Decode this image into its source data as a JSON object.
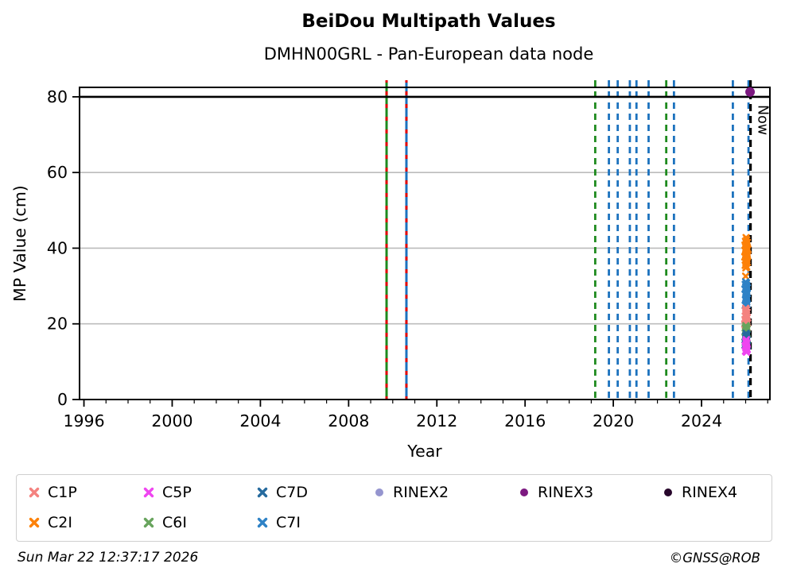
{
  "header": {
    "title": "BeiDou Multipath Values",
    "subtitle": "DMHN00GRL - Pan-European data node"
  },
  "footer": {
    "timestamp": "Sun Mar 22 12:37:17 2026",
    "copyright": "©GNSS@ROB"
  },
  "chart_data": {
    "type": "scatter",
    "title": "BeiDou Multipath Values",
    "subtitle": "DMHN00GRL - Pan-European data node",
    "xlabel": "Year",
    "ylabel": "MP Value (cm)",
    "xlim": [
      1995.8,
      2027.1
    ],
    "ylim": [
      0,
      82.5
    ],
    "x_major_ticks": [
      1996,
      2000,
      2004,
      2008,
      2012,
      2016,
      2020,
      2024
    ],
    "x_minor_step_years": 1,
    "y_major_ticks": [
      0,
      20,
      40,
      60,
      80
    ],
    "grid": "horizontal-only",
    "grid_color": "#bcbcbc",
    "hline": {
      "y": 80,
      "color": "#000000"
    },
    "now_marker": {
      "x": 2026.22,
      "label": "Now",
      "color": "#000000",
      "style": "dashed"
    },
    "event_lines": [
      {
        "x": 2009.72,
        "style": "solid+dash-overlay",
        "base_color": "#1e8a1e",
        "dash_color": "#e00000"
      },
      {
        "x": 2010.62,
        "style": "solid+dash-overlay",
        "base_color": "#1c72be",
        "dash_color": "#e00000"
      },
      {
        "x": 2019.18,
        "style": "dashed",
        "color": "#1e8a1e"
      },
      {
        "x": 2019.8,
        "style": "dashed",
        "color": "#1c72be"
      },
      {
        "x": 2020.2,
        "style": "dashed",
        "color": "#1c72be"
      },
      {
        "x": 2020.75,
        "style": "dashed",
        "color": "#1c72be"
      },
      {
        "x": 2021.05,
        "style": "dashed",
        "color": "#1c72be"
      },
      {
        "x": 2021.6,
        "style": "dashed",
        "color": "#1c72be"
      },
      {
        "x": 2022.4,
        "style": "dashed",
        "color": "#1e8a1e"
      },
      {
        "x": 2022.75,
        "style": "dashed",
        "color": "#1c72be"
      },
      {
        "x": 2025.42,
        "style": "dashed",
        "color": "#1c72be"
      },
      {
        "x": 2026.13,
        "style": "dashed",
        "color": "#1c72be"
      }
    ],
    "series": [
      {
        "name": "C2I",
        "marker": "x",
        "color": "#fd8108",
        "points": [
          [
            2026.02,
            42.8
          ],
          [
            2026.05,
            42.2
          ],
          [
            2025.99,
            41.8
          ],
          [
            2026.08,
            41.5
          ],
          [
            2026.03,
            41.1
          ],
          [
            2025.97,
            40.8
          ],
          [
            2026.06,
            40.4
          ],
          [
            2026.01,
            40.0
          ],
          [
            2026.1,
            39.7
          ],
          [
            2025.98,
            39.3
          ],
          [
            2026.04,
            39.0
          ],
          [
            2026.07,
            38.6
          ],
          [
            2026.0,
            38.3
          ],
          [
            2026.09,
            38.0
          ],
          [
            2025.96,
            37.7
          ],
          [
            2026.03,
            37.4
          ],
          [
            2026.06,
            37.0
          ],
          [
            2026.0,
            36.7
          ],
          [
            2026.08,
            36.3
          ],
          [
            2026.02,
            35.9
          ],
          [
            2025.98,
            35.5
          ],
          [
            2026.05,
            35.1
          ],
          [
            2026.01,
            34.8
          ],
          [
            2026.04,
            36.1
          ],
          [
            2026.07,
            37.8
          ],
          [
            2025.99,
            40.6
          ],
          [
            2026.0,
            32.6
          ],
          [
            2026.03,
            30.3
          ]
        ]
      },
      {
        "name": "C7I",
        "marker": "x",
        "color": "#2e82c6",
        "points": [
          [
            2026.0,
            31.1
          ],
          [
            2026.04,
            30.8
          ],
          [
            2025.98,
            30.4
          ],
          [
            2026.06,
            30.1
          ],
          [
            2026.02,
            29.8
          ],
          [
            2026.08,
            29.5
          ],
          [
            2025.97,
            29.2
          ],
          [
            2026.03,
            28.9
          ],
          [
            2026.05,
            28.6
          ],
          [
            2026.01,
            28.3
          ],
          [
            2026.07,
            28.0
          ],
          [
            2025.99,
            27.7
          ],
          [
            2026.04,
            27.4
          ],
          [
            2026.02,
            27.1
          ],
          [
            2026.06,
            26.8
          ],
          [
            2026.0,
            26.5
          ],
          [
            2026.03,
            26.1
          ],
          [
            2026.05,
            25.8
          ],
          [
            2026.01,
            25.4
          ],
          [
            2026.07,
            25.1
          ],
          [
            2025.98,
            24.9
          ],
          [
            2026.04,
            29.0
          ],
          [
            2026.02,
            30.2
          ],
          [
            2026.06,
            27.9
          ]
        ]
      },
      {
        "name": "C1P",
        "marker": "x",
        "color": "#f4827f",
        "points": [
          [
            2026.0,
            24.1
          ],
          [
            2026.04,
            23.7
          ],
          [
            2025.98,
            23.4
          ],
          [
            2026.07,
            23.0
          ],
          [
            2026.02,
            22.7
          ],
          [
            2026.05,
            22.3
          ],
          [
            2025.99,
            22.0
          ],
          [
            2026.08,
            21.7
          ],
          [
            2026.03,
            21.4
          ],
          [
            2025.97,
            21.1
          ],
          [
            2026.06,
            20.8
          ],
          [
            2026.01,
            20.5
          ],
          [
            2026.09,
            20.2
          ],
          [
            2026.04,
            19.9
          ],
          [
            2025.98,
            19.6
          ],
          [
            2026.02,
            19.3
          ],
          [
            2026.06,
            19.0
          ],
          [
            2026.0,
            21.9
          ],
          [
            2026.05,
            22.9
          ],
          [
            2025.96,
            20.0
          ]
        ]
      },
      {
        "name": "C6I",
        "marker": "x",
        "color": "#68a45d",
        "points": [
          [
            2026.01,
            19.5
          ],
          [
            2026.05,
            19.2
          ],
          [
            2025.98,
            18.9
          ],
          [
            2026.07,
            18.6
          ],
          [
            2026.02,
            18.3
          ],
          [
            2026.04,
            18.0
          ],
          [
            2025.99,
            17.7
          ],
          [
            2026.06,
            17.4
          ],
          [
            2026.01,
            17.1
          ],
          [
            2026.03,
            16.8
          ],
          [
            2025.97,
            16.5
          ],
          [
            2026.05,
            16.2
          ],
          [
            2026.08,
            16.0
          ],
          [
            2026.0,
            17.9
          ],
          [
            2026.04,
            18.8
          ],
          [
            2026.02,
            16.9
          ]
        ]
      },
      {
        "name": "C7D",
        "marker": "x",
        "color": "#266a9e",
        "points": [
          [
            2026.02,
            17.5
          ],
          [
            2026.06,
            17.1
          ],
          [
            2025.99,
            16.8
          ],
          [
            2026.04,
            16.4
          ],
          [
            2026.0,
            16.1
          ],
          [
            2026.07,
            15.8
          ],
          [
            2026.03,
            15.4
          ],
          [
            2025.98,
            15.1
          ],
          [
            2026.05,
            14.8
          ],
          [
            2026.01,
            14.5
          ],
          [
            2026.08,
            14.2
          ],
          [
            2026.03,
            13.9
          ],
          [
            2026.06,
            14.9
          ],
          [
            2026.0,
            15.6
          ],
          [
            2026.04,
            16.6
          ],
          [
            2025.97,
            14.4
          ]
        ]
      },
      {
        "name": "C5P",
        "marker": "x",
        "color": "#ef45f0",
        "points": [
          [
            2026.03,
            15.8
          ],
          [
            2026.0,
            15.3
          ],
          [
            2026.06,
            14.9
          ],
          [
            2026.02,
            14.5
          ],
          [
            2025.98,
            14.2
          ],
          [
            2026.05,
            13.9
          ],
          [
            2026.01,
            13.6
          ],
          [
            2026.07,
            13.3
          ],
          [
            2026.03,
            13.0
          ],
          [
            2025.99,
            12.8
          ],
          [
            2026.04,
            12.5
          ],
          [
            2026.0,
            14.0
          ],
          [
            2026.06,
            13.1
          ],
          [
            2026.02,
            15.0
          ]
        ]
      },
      {
        "name": "RINEX2",
        "marker": "o",
        "color": "#9595cf",
        "points": []
      },
      {
        "name": "RINEX3",
        "marker": "o",
        "color": "#7c1980",
        "points": [
          [
            2026.2,
            81.3
          ]
        ]
      },
      {
        "name": "RINEX4",
        "marker": "o",
        "color": "#27062b",
        "points": []
      }
    ],
    "legend": {
      "position": "bottom",
      "items": [
        {
          "label": "C1P",
          "marker": "x",
          "color": "#f4827f"
        },
        {
          "label": "C2I",
          "marker": "x",
          "color": "#fd8108"
        },
        {
          "label": "C5P",
          "marker": "x",
          "color": "#ef45f0"
        },
        {
          "label": "C6I",
          "marker": "x",
          "color": "#68a45d"
        },
        {
          "label": "C7D",
          "marker": "x",
          "color": "#266a9e"
        },
        {
          "label": "C7I",
          "marker": "x",
          "color": "#2e82c6"
        },
        {
          "label": "RINEX2",
          "marker": "o",
          "color": "#9595cf"
        },
        {
          "label": "RINEX3",
          "marker": "o",
          "color": "#7c1980"
        },
        {
          "label": "RINEX4",
          "marker": "o",
          "color": "#27062b"
        }
      ]
    }
  }
}
